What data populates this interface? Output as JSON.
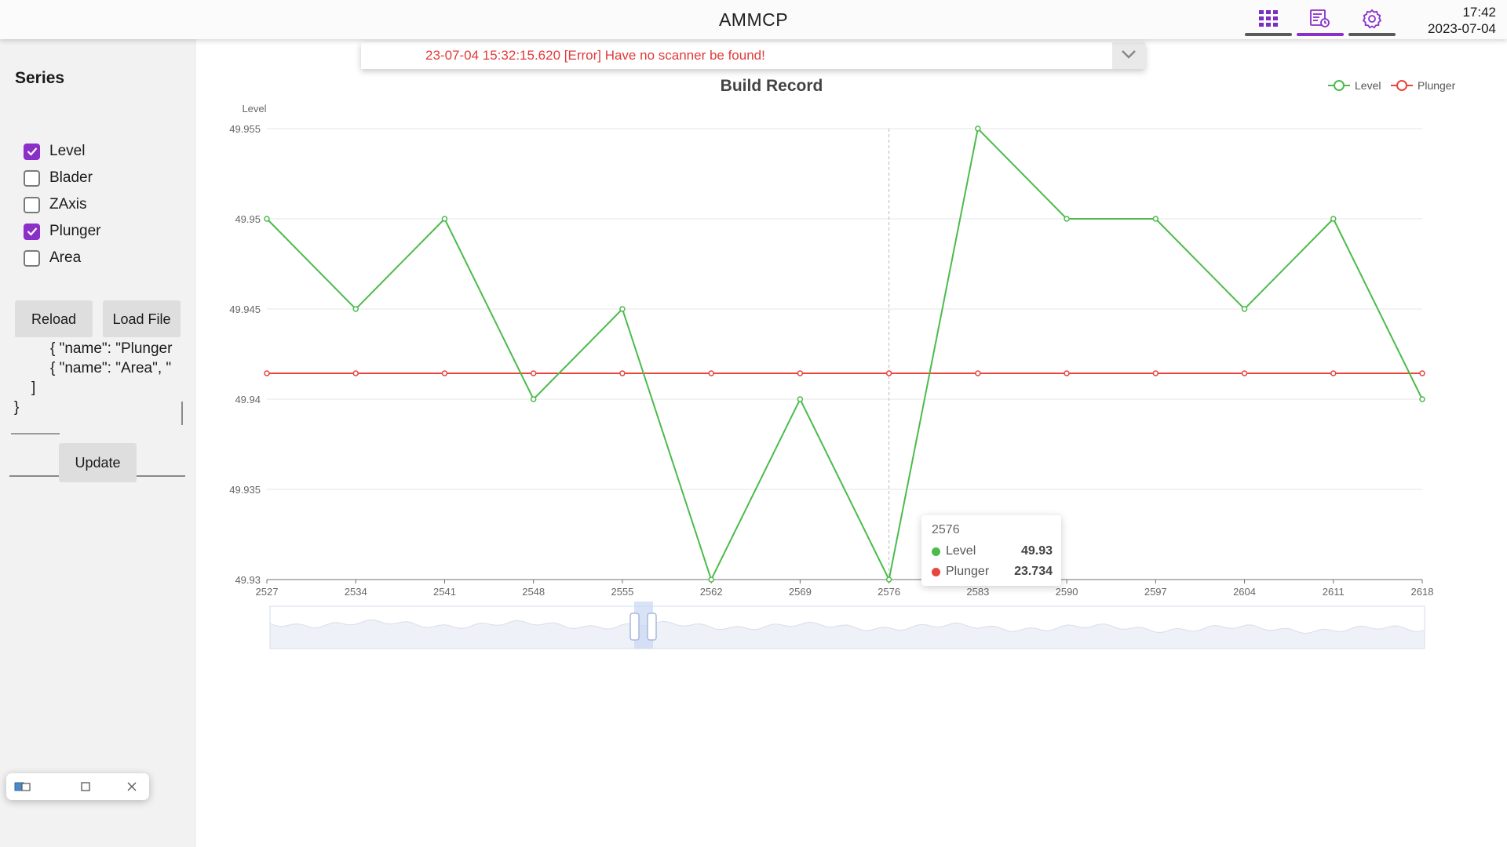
{
  "app": {
    "title": "AMMCP"
  },
  "clock": {
    "time": "17:42",
    "date": "2023-07-04"
  },
  "nav": [
    {
      "name": "grid-icon",
      "active": false
    },
    {
      "name": "records-icon",
      "active": true
    },
    {
      "name": "settings-icon",
      "active": false
    }
  ],
  "sidebar": {
    "title": "Series",
    "checkboxes": [
      {
        "label": "Level",
        "checked": true
      },
      {
        "label": "Blader",
        "checked": false
      },
      {
        "label": "ZAxis",
        "checked": false
      },
      {
        "label": "Plunger",
        "checked": true
      },
      {
        "label": "Area",
        "checked": false
      }
    ],
    "reload_label": "Reload",
    "load_file_label": "Load File",
    "json_lines": [
      "{ \"name\": \"Plunger",
      "{ \"name\": \"Area\", \"",
      "]",
      "}"
    ],
    "update_label": "Update"
  },
  "error": {
    "message": "23-07-04 15:32:15.620 [Error] Have no scanner be found!"
  },
  "colors": {
    "accent": "#8b2fc9",
    "level": "#4cbb4c",
    "plunger": "#e8453c",
    "error": "#e23a3a"
  },
  "chart_data": {
    "type": "line",
    "title": "Build Record",
    "ylabel": "Level",
    "ylim": [
      49.93,
      49.955
    ],
    "yticks": [
      "49.93",
      "49.935",
      "49.94",
      "49.945",
      "49.95",
      "49.955"
    ],
    "legend_position": "top-right",
    "x": [
      "2527",
      "2534",
      "2541",
      "2548",
      "2555",
      "2562",
      "2569",
      "2576",
      "2583",
      "2590",
      "2597",
      "2604",
      "2611",
      "2618"
    ],
    "series": [
      {
        "name": "Level",
        "values": [
          49.95,
          49.945,
          49.95,
          49.94,
          49.945,
          49.93,
          49.94,
          49.93,
          49.955,
          49.95,
          49.95,
          49.945,
          49.95,
          49.94
        ]
      },
      {
        "name": "Plunger",
        "values": [
          23.734,
          23.734,
          23.734,
          23.734,
          23.734,
          23.734,
          23.734,
          23.734,
          23.734,
          23.734,
          23.734,
          23.734,
          23.734,
          23.734
        ]
      }
    ],
    "tooltip": {
      "x": "2576",
      "rows": [
        {
          "name": "Level",
          "value": "49.93"
        },
        {
          "name": "Plunger",
          "value": "23.734"
        }
      ]
    }
  }
}
